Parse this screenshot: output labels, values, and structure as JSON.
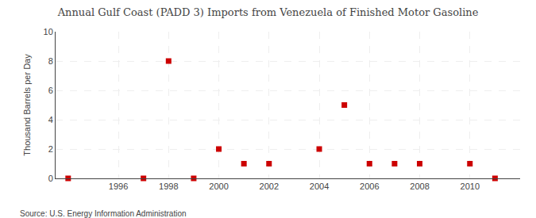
{
  "chart_data": {
    "type": "scatter",
    "title": "Annual Gulf Coast (PADD 3) Imports from Venezuela of Finished Motor Gasoline",
    "y_label": "Thousand Barrels per Day",
    "annotations": [
      "Source: U.S. Energy Information Administration"
    ],
    "x": [
      1994,
      1997,
      1998,
      1999,
      2000,
      2001,
      2002,
      2004,
      2005,
      2006,
      2007,
      2008,
      2010,
      2011
    ],
    "values": [
      0,
      0,
      8,
      0,
      2,
      1,
      1,
      2,
      5,
      1,
      1,
      1,
      1,
      0
    ],
    "color": "#cc0000",
    "marker": "square",
    "xlim": [
      1993.5,
      2012.0
    ],
    "ylim": [
      0,
      10
    ],
    "xticks": [
      1996,
      1998,
      2000,
      2002,
      2004,
      2006,
      2008,
      2010
    ],
    "yticks": [
      0,
      2,
      4,
      6,
      8,
      10
    ],
    "grid": true
  }
}
